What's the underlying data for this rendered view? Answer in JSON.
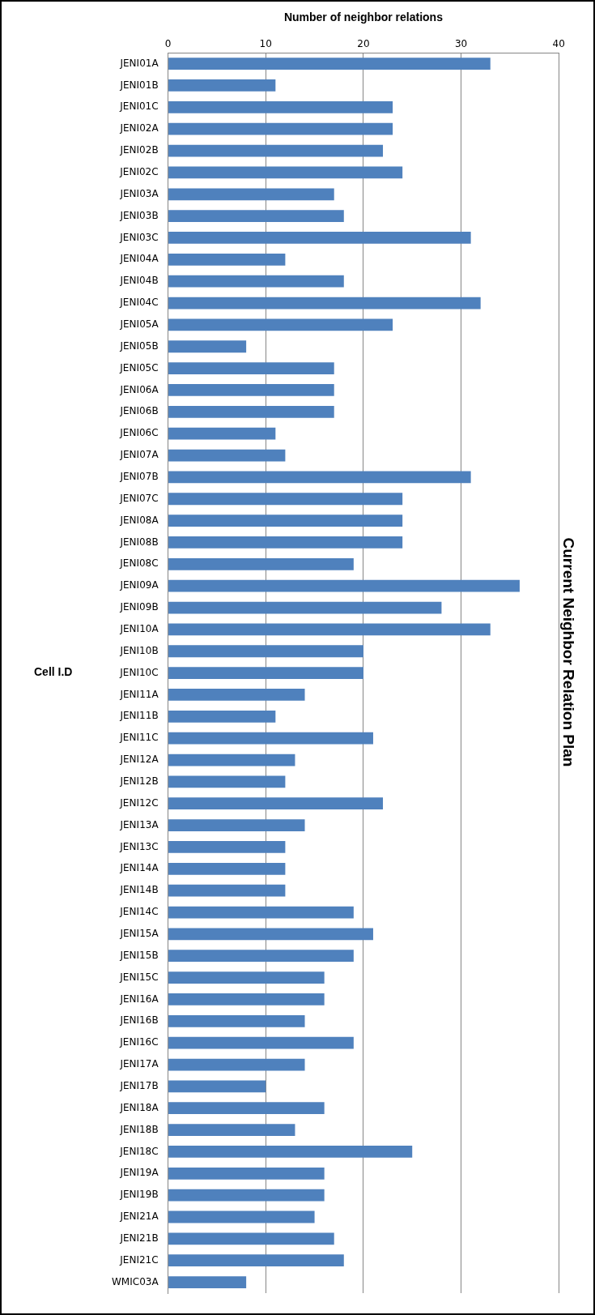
{
  "chart_data": {
    "type": "bar",
    "orientation": "horizontal",
    "title": "Current Neighbor Relation Plan",
    "xlabel": "Number of neighbor relations",
    "ylabel": "Cell I.D",
    "categories": [
      "JENI01A",
      "JENI01B",
      "JENI01C",
      "JENI02A",
      "JENI02B",
      "JENI02C",
      "JENI03A",
      "JENI03B",
      "JENI03C",
      "JENI04A",
      "JENI04B",
      "JENI04C",
      "JENI05A",
      "JENI05B",
      "JENI05C",
      "JENI06A",
      "JENI06B",
      "JENI06C",
      "JENI07A",
      "JENI07B",
      "JENI07C",
      "JENI08A",
      "JENI08B",
      "JENI08C",
      "JENI09A",
      "JENI09B",
      "JENI10A",
      "JENI10B",
      "JENI10C",
      "JENI11A",
      "JENI11B",
      "JENI11C",
      "JENI12A",
      "JENI12B",
      "JENI12C",
      "JENI13A",
      "JENI13C",
      "JENI14A",
      "JENI14B",
      "JENI14C",
      "JENI15A",
      "JENI15B",
      "JENI15C",
      "JENI16A",
      "JENI16B",
      "JENI16C",
      "JENI17A",
      "JENI17B",
      "JENI18A",
      "JENI18B",
      "JENI18C",
      "JENI19A",
      "JENI19B",
      "JENI21A",
      "JENI21B",
      "JENI21C",
      "WMIC03A"
    ],
    "values": [
      33,
      11,
      23,
      23,
      22,
      24,
      17,
      18,
      31,
      12,
      18,
      32,
      23,
      8,
      17,
      17,
      17,
      11,
      12,
      31,
      24,
      24,
      24,
      19,
      36,
      28,
      33,
      20,
      20,
      14,
      11,
      21,
      13,
      12,
      22,
      14,
      12,
      12,
      12,
      19,
      21,
      19,
      16,
      16,
      14,
      19,
      14,
      10,
      16,
      13,
      25,
      16,
      16,
      15,
      17,
      18,
      8
    ],
    "color": "#4f81bd",
    "xlim": [
      0,
      40
    ],
    "xticks": [
      0,
      10,
      20,
      30,
      40
    ],
    "grid": "x",
    "legend": false
  }
}
